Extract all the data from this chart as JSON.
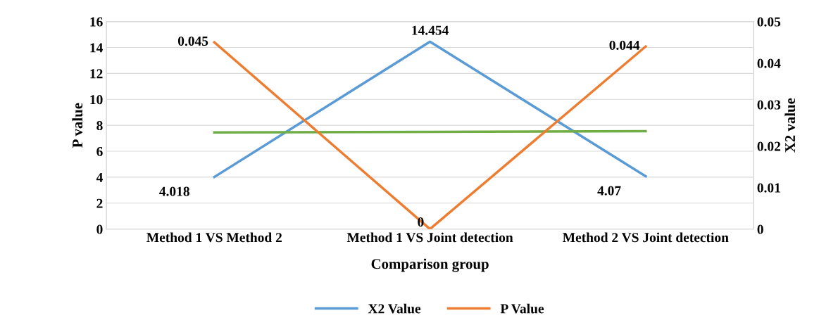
{
  "chart_data": {
    "type": "line",
    "xlabel": "Comparison group",
    "ylabel": "P value",
    "y2label": "X2 value",
    "categories": [
      "Method 1 VS Method 2",
      "Method 1 VS Joint detection",
      "Method 2 VS Joint detection"
    ],
    "series": [
      {
        "name": "X2 Value",
        "color": "#5b9bd5",
        "values": [
          4.018,
          14.454,
          4.07
        ],
        "value_labels": [
          "4.018",
          "14.454",
          "4.07"
        ]
      },
      {
        "name": "P Value",
        "color": "#ed7d31",
        "axis": "y2",
        "values": [
          0.045,
          0,
          0.044
        ],
        "value_labels": [
          "0.045",
          "0",
          "0.044"
        ]
      },
      {
        "color": "#70ad47",
        "values": [
          7.45,
          7.5,
          7.55
        ]
      }
    ],
    "ylim": [
      0,
      16
    ],
    "yticks": [
      0,
      2,
      4,
      6,
      8,
      10,
      12,
      14,
      16
    ],
    "y2lim": [
      0,
      0.05
    ],
    "y2ticks": [
      0,
      0.01,
      0.02,
      0.03,
      0.04,
      0.05
    ],
    "grid": "y",
    "legend": "bottom",
    "marker": "none",
    "line_style": "solid"
  }
}
